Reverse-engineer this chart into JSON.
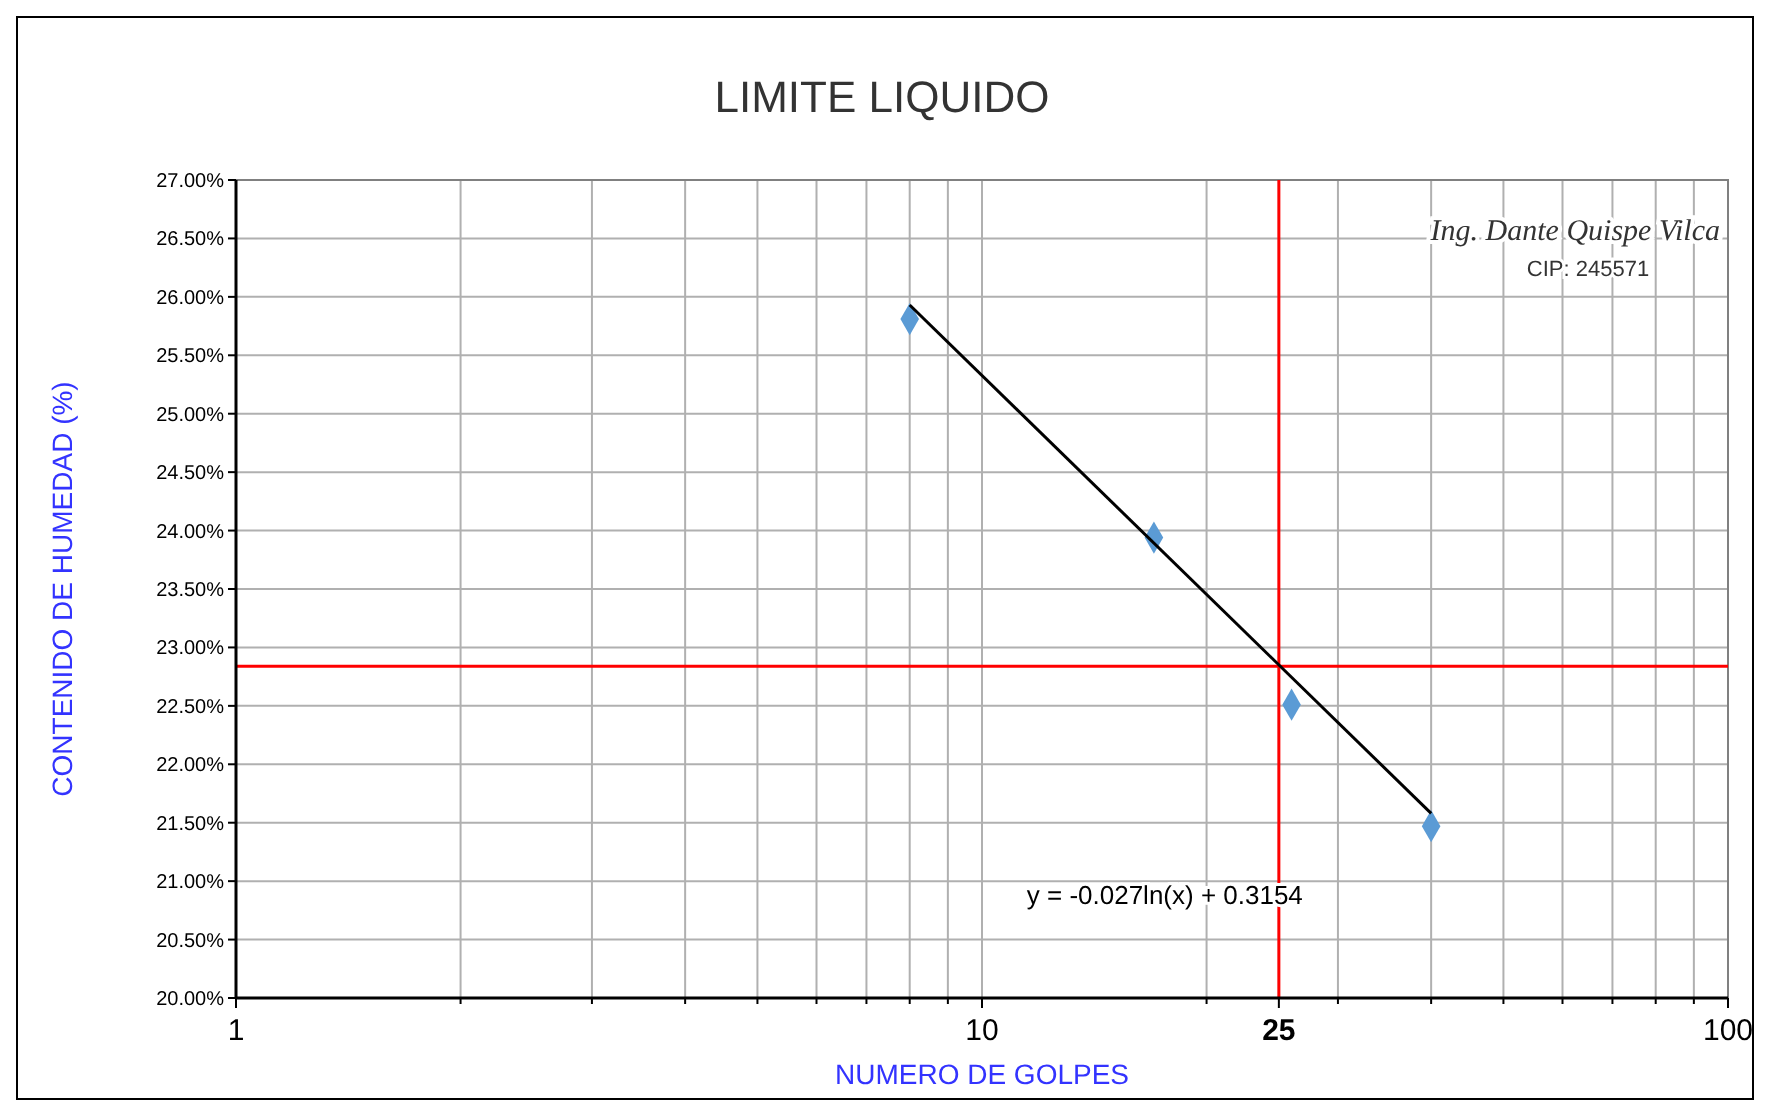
{
  "chart_data": {
    "type": "scatter",
    "title": "LIMITE LIQUIDO",
    "xlabel": "NUMERO DE GOLPES",
    "ylabel": "CONTENIDO DE HUMEDAD (%)",
    "log": "x",
    "grid": true,
    "marker": "diamond",
    "xlim": [
      1,
      100
    ],
    "xticks": [
      1,
      {
        "value": 2,
        "label": null
      },
      {
        "value": 3,
        "label": null
      },
      {
        "value": 4,
        "label": null
      },
      {
        "value": 5,
        "label": null
      },
      {
        "value": 6,
        "label": null
      },
      {
        "value": 7,
        "label": null
      },
      {
        "value": 8,
        "label": null
      },
      {
        "value": 9,
        "label": null
      },
      10,
      {
        "value": 20,
        "label": null
      },
      25,
      {
        "value": 30,
        "label": null
      },
      {
        "value": 40,
        "label": null
      },
      {
        "value": 50,
        "label": null
      },
      {
        "value": 60,
        "label": null
      },
      {
        "value": 70,
        "label": null
      },
      {
        "value": 80,
        "label": null
      },
      {
        "value": 90,
        "label": null
      },
      100
    ],
    "ylim": [
      20,
      27
    ],
    "yticks": [
      {
        "value": 20,
        "label": "20.00%"
      },
      {
        "value": 20.5,
        "label": "20.50%"
      },
      {
        "value": 21,
        "label": "21.00%"
      },
      {
        "value": 21.5,
        "label": "21.50%"
      },
      {
        "value": 22,
        "label": "22.00%"
      },
      {
        "value": 22.5,
        "label": "22.50%"
      },
      {
        "value": 23,
        "label": "23.00%"
      },
      {
        "value": 23.5,
        "label": "23.50%"
      },
      {
        "value": 24,
        "label": "24.00%"
      },
      {
        "value": 24.5,
        "label": "24.50%"
      },
      {
        "value": 25,
        "label": "25.00%"
      },
      {
        "value": 25.5,
        "label": "25.50%"
      },
      {
        "value": 26,
        "label": "26.00%"
      },
      {
        "value": 26.5,
        "label": "26.50%"
      },
      {
        "value": 27,
        "label": "27.00%"
      }
    ],
    "series": [
      {
        "color": "#5b9bd5",
        "x": [
          8,
          17,
          26,
          40
        ],
        "values": [
          25.81,
          23.94,
          22.51,
          21.47
        ]
      },
      {
        "type": "line",
        "color": "#000000",
        "x": [
          8,
          40
        ],
        "values": [
          25.93,
          21.58
        ],
        "marker": "none",
        "line_style": "solid"
      }
    ],
    "ref_lines": [
      {
        "axis": "x",
        "value": 25,
        "color": "#ff0000"
      },
      {
        "axis": "y",
        "value": 22.84,
        "color": "#ff0000"
      }
    ],
    "annotations": [
      "y = -0.027ln(x) + 0.3154",
      "Ing. Dante Quispe Vilca",
      "CIP: 245571"
    ]
  }
}
